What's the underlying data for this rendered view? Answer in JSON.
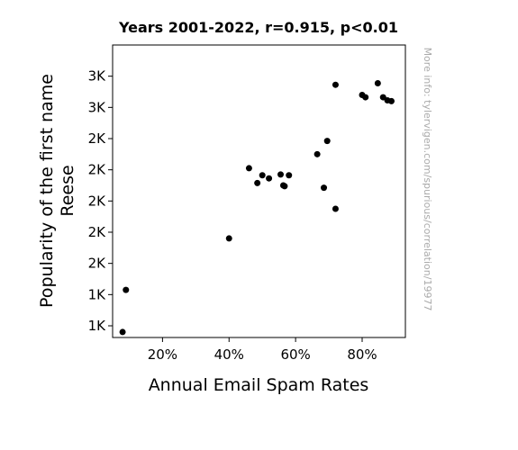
{
  "chart_data": {
    "type": "scatter",
    "title": "Years 2001-2022, r=0.915, p<0.01",
    "xlabel": "Annual Email Spam Rates",
    "ylabel": [
      "Popularity of the first name",
      "Reese"
    ],
    "watermark": "More info: tylervigen.com/spurious/correlation/19977",
    "xlim": [
      0.05,
      0.93
    ],
    "ylim": [
      1125,
      3000
    ],
    "x_ticks": [
      {
        "value": 0.2,
        "label": "20%"
      },
      {
        "value": 0.4,
        "label": "40%"
      },
      {
        "value": 0.6,
        "label": "60%"
      },
      {
        "value": 0.8,
        "label": "80%"
      }
    ],
    "y_ticks": [
      {
        "value": 1200,
        "label": "1K"
      },
      {
        "value": 1400,
        "label": "1K"
      },
      {
        "value": 1600,
        "label": "2K"
      },
      {
        "value": 1800,
        "label": "2K"
      },
      {
        "value": 2000,
        "label": "2K"
      },
      {
        "value": 2200,
        "label": "2K"
      },
      {
        "value": 2400,
        "label": "2K"
      },
      {
        "value": 2600,
        "label": "3K"
      },
      {
        "value": 2800,
        "label": "3K"
      }
    ],
    "grid": false,
    "marker_color": "#000000",
    "points": [
      {
        "x": 0.08,
        "y": 1160
      },
      {
        "x": 0.09,
        "y": 1430
      },
      {
        "x": 0.4,
        "y": 1760
      },
      {
        "x": 0.46,
        "y": 2210
      },
      {
        "x": 0.485,
        "y": 2115
      },
      {
        "x": 0.5,
        "y": 2165
      },
      {
        "x": 0.52,
        "y": 2145
      },
      {
        "x": 0.555,
        "y": 2170
      },
      {
        "x": 0.563,
        "y": 2100
      },
      {
        "x": 0.567,
        "y": 2095
      },
      {
        "x": 0.58,
        "y": 2165
      },
      {
        "x": 0.665,
        "y": 2300
      },
      {
        "x": 0.685,
        "y": 2085
      },
      {
        "x": 0.695,
        "y": 2385
      },
      {
        "x": 0.72,
        "y": 1950
      },
      {
        "x": 0.72,
        "y": 2745
      },
      {
        "x": 0.8,
        "y": 2680
      },
      {
        "x": 0.81,
        "y": 2665
      },
      {
        "x": 0.847,
        "y": 2755
      },
      {
        "x": 0.863,
        "y": 2665
      },
      {
        "x": 0.876,
        "y": 2645
      },
      {
        "x": 0.888,
        "y": 2640
      }
    ]
  }
}
